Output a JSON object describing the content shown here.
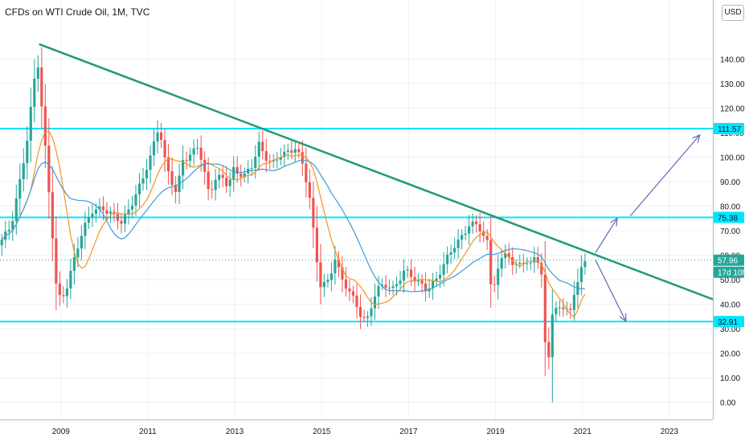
{
  "header": {
    "title": "CFDs on WTI Crude Oil, 1M, TVC",
    "currency": "USD"
  },
  "colors": {
    "up": "#26a69a",
    "down": "#ef5350",
    "trendline": "#1f9c6e",
    "hline": "#00e5ff",
    "ma_fast": "#f7931a",
    "ma_slow": "#3d9bd6",
    "arrow": "#5b6bb5",
    "grid": "#eef0f3",
    "last_price_line": "#26a69a"
  },
  "chart_data": {
    "type": "candlestick",
    "title": "CFDs on WTI Crude Oil, 1M, TVC",
    "interval": "1M",
    "x_range": [
      2007.6,
      2024.0
    ],
    "ylim": [
      -7,
      164
    ],
    "grid": true,
    "x_ticks": [
      "2009",
      "2011",
      "2013",
      "2015",
      "2017",
      "2019",
      "2021",
      "2023"
    ],
    "y_ticks": [
      "0.00",
      "10.00",
      "20.00",
      "30.00",
      "40.00",
      "50.00",
      "60.00",
      "70.00",
      "80.00",
      "90.00",
      "100.00",
      "110.00",
      "120.00",
      "130.00",
      "140.00"
    ],
    "anchors": [
      [
        2007.6,
        64
      ],
      [
        2007.9,
        72
      ],
      [
        2008.1,
        90
      ],
      [
        2008.25,
        105
      ],
      [
        2008.5,
        141
      ],
      [
        2008.58,
        125
      ],
      [
        2008.7,
        100
      ],
      [
        2008.85,
        68
      ],
      [
        2008.95,
        44
      ],
      [
        2009.05,
        42
      ],
      [
        2009.2,
        48
      ],
      [
        2009.4,
        62
      ],
      [
        2009.55,
        70
      ],
      [
        2009.75,
        78
      ],
      [
        2010.0,
        79
      ],
      [
        2010.35,
        75
      ],
      [
        2010.45,
        73
      ],
      [
        2010.7,
        82
      ],
      [
        2010.9,
        90
      ],
      [
        2011.1,
        100
      ],
      [
        2011.3,
        113
      ],
      [
        2011.45,
        97
      ],
      [
        2011.7,
        85
      ],
      [
        2011.85,
        99
      ],
      [
        2012.0,
        100
      ],
      [
        2012.2,
        105
      ],
      [
        2012.45,
        85
      ],
      [
        2012.6,
        91
      ],
      [
        2012.75,
        92
      ],
      [
        2012.9,
        88
      ],
      [
        2013.0,
        95
      ],
      [
        2013.25,
        92
      ],
      [
        2013.45,
        97
      ],
      [
        2013.6,
        105
      ],
      [
        2013.75,
        100
      ],
      [
        2013.9,
        97
      ],
      [
        2014.1,
        101
      ],
      [
        2014.3,
        102
      ],
      [
        2014.45,
        104
      ],
      [
        2014.6,
        97
      ],
      [
        2014.75,
        86
      ],
      [
        2014.9,
        62
      ],
      [
        2015.0,
        48
      ],
      [
        2015.2,
        49
      ],
      [
        2015.35,
        59
      ],
      [
        2015.5,
        50
      ],
      [
        2015.7,
        45
      ],
      [
        2015.9,
        37
      ],
      [
        2016.0,
        34
      ],
      [
        2016.1,
        34
      ],
      [
        2016.3,
        46
      ],
      [
        2016.5,
        48
      ],
      [
        2016.7,
        46
      ],
      [
        2016.95,
        54
      ],
      [
        2017.2,
        50
      ],
      [
        2017.45,
        46
      ],
      [
        2017.65,
        49
      ],
      [
        2017.9,
        58
      ],
      [
        2018.1,
        64
      ],
      [
        2018.3,
        68
      ],
      [
        2018.45,
        73
      ],
      [
        2018.65,
        72
      ],
      [
        2018.85,
        65
      ],
      [
        2018.95,
        45
      ],
      [
        2019.1,
        54
      ],
      [
        2019.3,
        63
      ],
      [
        2019.45,
        54
      ],
      [
        2019.6,
        58
      ],
      [
        2019.8,
        55
      ],
      [
        2019.95,
        61
      ],
      [
        2020.1,
        51
      ],
      [
        2020.2,
        20
      ],
      [
        2020.3,
        19
      ],
      [
        2020.35,
        35
      ],
      [
        2020.5,
        40
      ],
      [
        2020.75,
        36
      ],
      [
        2020.85,
        45
      ],
      [
        2021.0,
        52
      ],
      [
        2021.05,
        57.96
      ]
    ],
    "moving_averages": [
      {
        "name": "",
        "period": 9,
        "color": "#f7931a"
      },
      {
        "name": "",
        "period": 20,
        "color": "#3d9bd6"
      }
    ],
    "horizontal_lines": [
      {
        "price": 111.57,
        "label": "111.57"
      },
      {
        "price": 75.38,
        "label": "75.38"
      },
      {
        "price": 32.91,
        "label": "32.91"
      }
    ],
    "trendline": {
      "from": [
        2008.5,
        146
      ],
      "to": [
        2024.0,
        42
      ]
    },
    "arrows": [
      {
        "from": [
          2021.3,
          61
        ],
        "to": [
          2021.8,
          75
        ]
      },
      {
        "from": [
          2022.1,
          76
        ],
        "to": [
          2023.7,
          109
        ]
      },
      {
        "from": [
          2021.3,
          58
        ],
        "to": [
          2022.0,
          33
        ]
      }
    ],
    "last_price": {
      "price": 57.96,
      "label": "57.96",
      "countdown": "17d 10h"
    }
  }
}
